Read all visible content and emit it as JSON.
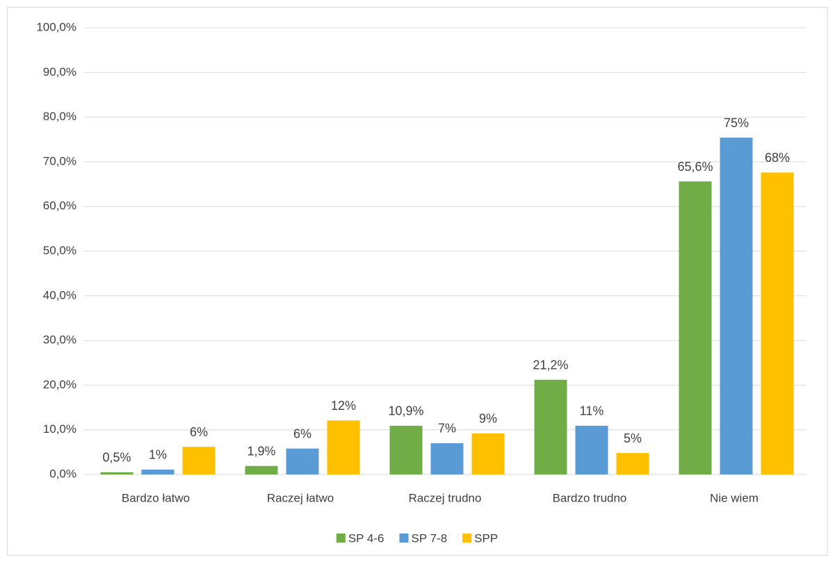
{
  "chart_data": {
    "type": "bar",
    "categories": [
      "Bardzo łatwo",
      "Raczej łatwo",
      "Raczej trudno",
      "Bardzo trudno",
      "Nie wiem"
    ],
    "series": [
      {
        "name": "SP 4-6",
        "color": "#70ad47",
        "values": [
          0.5,
          1.9,
          10.9,
          21.2,
          65.6
        ],
        "value_labels": [
          "0,5%",
          "1,9%",
          "10,9%",
          "21,2%",
          "65,6%"
        ]
      },
      {
        "name": "SP 7-8",
        "color": "#5b9bd5",
        "values": [
          1.1,
          5.8,
          7.0,
          10.9,
          75.4
        ],
        "value_labels": [
          "1%",
          "6%",
          "7%",
          "11%",
          "75%"
        ]
      },
      {
        "name": "SPP",
        "color": "#ffc000",
        "values": [
          6.2,
          12.1,
          9.2,
          4.8,
          67.6
        ],
        "value_labels": [
          "6%",
          "12%",
          "9%",
          "5%",
          "68%"
        ]
      }
    ],
    "ylim": [
      0,
      100
    ],
    "yticks": [
      {
        "value": 0,
        "label": "0,0%"
      },
      {
        "value": 10,
        "label": "10,0%"
      },
      {
        "value": 20,
        "label": "20,0%"
      },
      {
        "value": 30,
        "label": "30,0%"
      },
      {
        "value": 40,
        "label": "40,0%"
      },
      {
        "value": 50,
        "label": "50,0%"
      },
      {
        "value": 60,
        "label": "60,0%"
      },
      {
        "value": 70,
        "label": "70,0%"
      },
      {
        "value": 80,
        "label": "80,0%"
      },
      {
        "value": 90,
        "label": "90,0%"
      },
      {
        "value": 100,
        "label": "100,0%"
      }
    ],
    "grid": true,
    "legend": "bottom"
  }
}
